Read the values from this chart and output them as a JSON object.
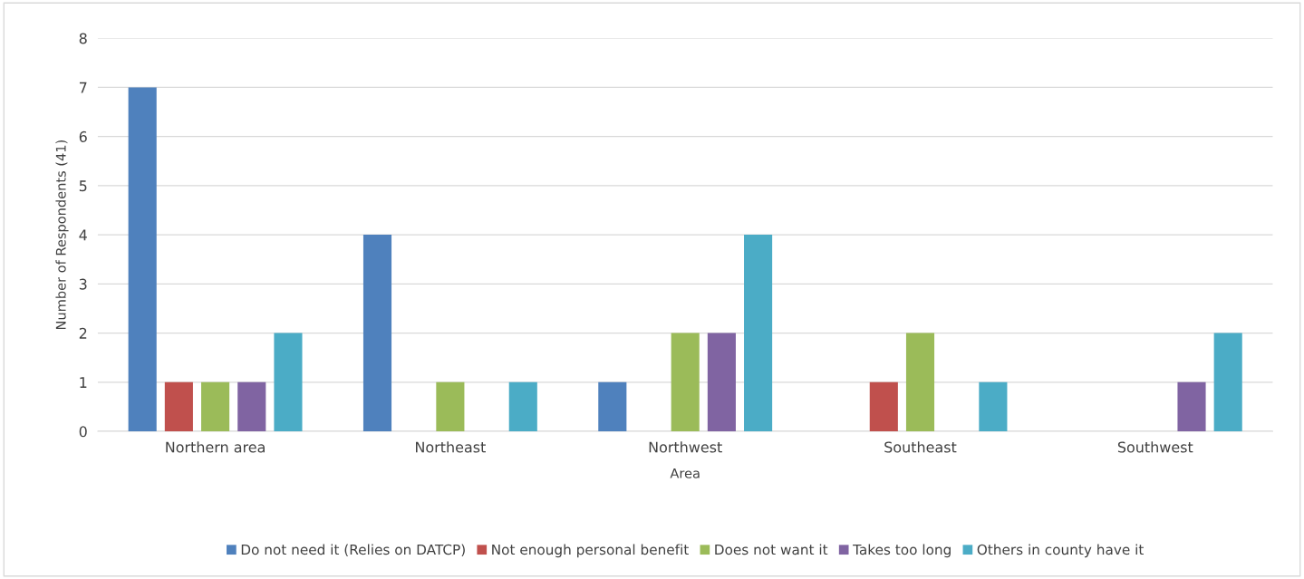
{
  "chart_data": {
    "type": "bar",
    "xlabel": "Area",
    "ylabel": "Number of Respondents (41)",
    "categories": [
      "Northern area",
      "Northeast",
      "Northwest",
      "Southeast",
      "Southwest"
    ],
    "series": [
      {
        "name": "Do not need it (Relies on DATCP)",
        "color": "#4f81bd",
        "values": [
          7,
          4,
          1,
          0,
          0
        ]
      },
      {
        "name": "Not enough personal benefit",
        "color": "#c0504d",
        "values": [
          1,
          0,
          0,
          1,
          0
        ]
      },
      {
        "name": "Does not want it",
        "color": "#9bbb59",
        "values": [
          1,
          1,
          2,
          2,
          0
        ]
      },
      {
        "name": "Takes too long",
        "color": "#8064a2",
        "values": [
          1,
          0,
          2,
          0,
          1
        ]
      },
      {
        "name": "Others in county have it",
        "color": "#4bacc6",
        "values": [
          2,
          1,
          4,
          1,
          2
        ]
      }
    ],
    "ylim": [
      0,
      8
    ],
    "yticks": [
      0,
      1,
      2,
      3,
      4,
      5,
      6,
      7,
      8
    ],
    "grid": "y",
    "legend": "bottom"
  }
}
